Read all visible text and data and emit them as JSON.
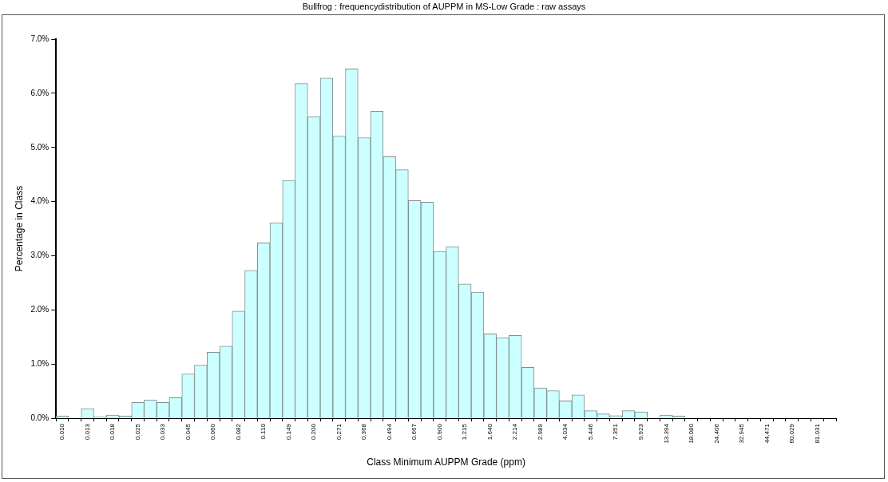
{
  "chart_data": {
    "type": "bar",
    "title": "Bullfrog  :  frequencydistribution of AUPPM in MS-Low Grade  :  raw assays",
    "xlabel": "Class Minimum AUPPM Grade (ppm)",
    "ylabel": "Percentage in Class",
    "categories": [
      "0.010",
      null,
      "0.013",
      null,
      "0.018",
      null,
      "0.025",
      null,
      "0.033",
      null,
      "0.045",
      null,
      "0.060",
      null,
      "0.082",
      null,
      "0.110",
      null,
      "0.149",
      null,
      "0.200",
      null,
      "0.271",
      null,
      "0.368",
      null,
      "0.494",
      null,
      "0.667",
      null,
      "0.900",
      null,
      "1.215",
      null,
      "1.640",
      null,
      "2.214",
      null,
      "2.989",
      null,
      "4.034",
      null,
      "5.446",
      null,
      "7.351",
      null,
      "9.923",
      null,
      "13.394",
      null,
      "18.080",
      null,
      "24.406",
      null,
      "32.945",
      null,
      "44.471",
      null,
      "60.029",
      null,
      "81.031",
      null
    ],
    "values": [
      0.04,
      0,
      0.18,
      0.03,
      0.06,
      0.04,
      0.29,
      0.34,
      0.29,
      0.38,
      0.82,
      0.98,
      1.22,
      1.33,
      1.98,
      2.73,
      3.24,
      3.61,
      4.39,
      6.18,
      5.57,
      6.28,
      5.21,
      6.45,
      5.18,
      5.67,
      4.83,
      4.59,
      4.02,
      3.99,
      3.08,
      3.17,
      2.48,
      2.33,
      1.56,
      1.49,
      1.53,
      0.94,
      0.56,
      0.51,
      0.32,
      0.43,
      0.14,
      0.08,
      0.05,
      0.14,
      0.12,
      0,
      0.06,
      0.04,
      0,
      0,
      0,
      0,
      0,
      0,
      0,
      0,
      0,
      0,
      0,
      0
    ],
    "color": "#ccffff",
    "ylim": [
      0,
      7
    ],
    "yticks": [
      {
        "value": 0,
        "label": "0.0%"
      },
      {
        "value": 1,
        "label": "1.0%"
      },
      {
        "value": 2,
        "label": "2.0%"
      },
      {
        "value": 3,
        "label": "3.0%"
      },
      {
        "value": 4,
        "label": "4.0%"
      },
      {
        "value": 5,
        "label": "5.0%"
      },
      {
        "value": 6,
        "label": "6.0%"
      },
      {
        "value": 7,
        "label": "7.0%"
      }
    ]
  }
}
